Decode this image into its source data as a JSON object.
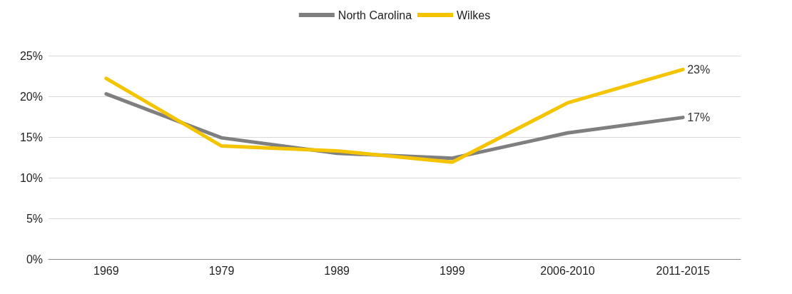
{
  "chart_data": {
    "type": "line",
    "categories": [
      "1969",
      "1979",
      "1989",
      "1999",
      "2006-2010",
      "2011-2015"
    ],
    "series": [
      {
        "name": "North Carolina",
        "color": "#7f7f7f",
        "values": [
          20.3,
          14.9,
          13.0,
          12.4,
          15.5,
          17.4
        ],
        "value_labels": [
          null,
          null,
          null,
          null,
          null,
          "17%"
        ]
      },
      {
        "name": "Wilkes",
        "color": "#f5c400",
        "values": [
          22.2,
          13.9,
          13.3,
          11.9,
          19.2,
          23.3
        ],
        "value_labels": [
          null,
          null,
          null,
          null,
          null,
          "23%"
        ]
      }
    ],
    "ylim": [
      0,
      25
    ],
    "yticks": [
      {
        "value": 0,
        "label": "0%"
      },
      {
        "value": 5,
        "label": "5%"
      },
      {
        "value": 10,
        "label": "10%"
      },
      {
        "value": 15,
        "label": "15%"
      },
      {
        "value": 20,
        "label": "20%"
      },
      {
        "value": 25,
        "label": "25%"
      }
    ],
    "grid": "y",
    "legend": "top",
    "marker": "none",
    "line_style": "solid"
  }
}
